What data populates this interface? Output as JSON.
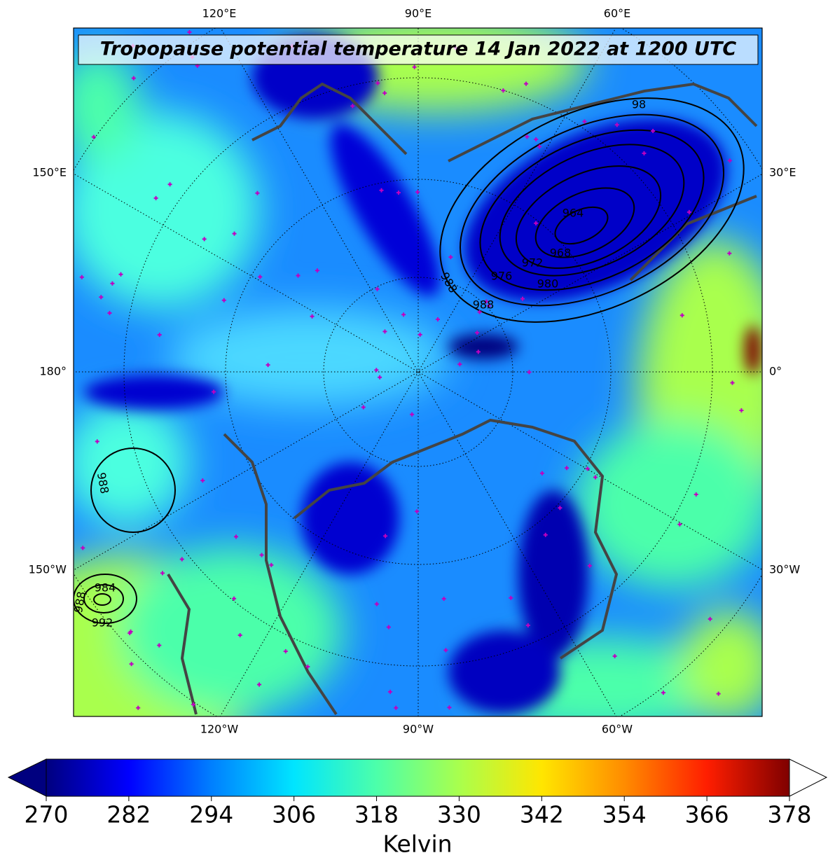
{
  "title": "Tropopause potential temperature 14 Jan 2022 at 1200 UTC",
  "map": {
    "top_labels": [
      "120°E",
      "90°E",
      "60°E"
    ],
    "bottom_labels": [
      "120°W",
      "90°W",
      "60°W"
    ],
    "left_labels": [
      "150°E",
      "180°",
      "150°W"
    ],
    "right_labels": [
      "30°E",
      "0°",
      "30°W"
    ],
    "contour_labels": [
      "98",
      "964",
      "968",
      "972",
      "976",
      "980",
      "988",
      "988",
      "988",
      "984",
      "988",
      "992"
    ]
  },
  "colorbar": {
    "label": "Kelvin",
    "lim": [
      270,
      378
    ],
    "ticks": [
      270,
      282,
      294,
      306,
      318,
      330,
      342,
      354,
      366,
      378
    ],
    "colormap": [
      "#00007f",
      "#0000ff",
      "#007fff",
      "#00e5ff",
      "#4cffaa",
      "#a9ff4d",
      "#ffe600",
      "#ff8c00",
      "#ff1e00",
      "#7f0000"
    ],
    "extend_min_color": "#00007f",
    "extend_max_color": "#ffffff"
  }
}
